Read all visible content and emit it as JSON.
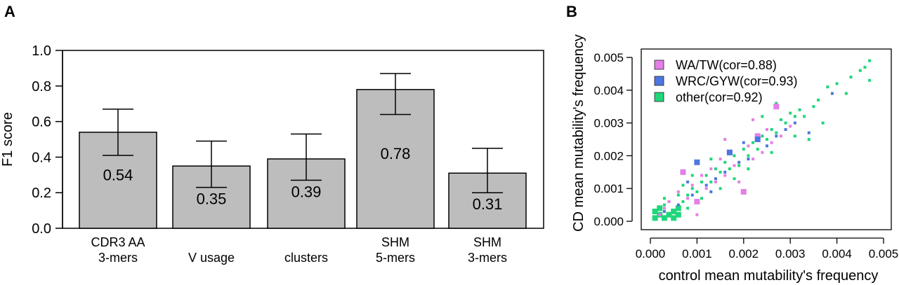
{
  "panels": {
    "a_label": "A",
    "b_label": "B"
  },
  "chart_data": [
    {
      "type": "bar",
      "panel": "A",
      "categories": [
        [
          "CDR3 AA",
          "3-mers"
        ],
        [
          "V usage"
        ],
        [
          "clusters"
        ],
        [
          "SHM",
          "5-mers"
        ],
        [
          "SHM",
          "3-mers"
        ]
      ],
      "values": [
        0.54,
        0.35,
        0.39,
        0.78,
        0.31
      ],
      "value_labels": [
        "0.54",
        "0.35",
        "0.39",
        "0.78",
        "0.31"
      ],
      "error_low": [
        0.41,
        0.23,
        0.27,
        0.64,
        0.2
      ],
      "error_high": [
        0.67,
        0.49,
        0.53,
        0.87,
        0.45
      ],
      "ylabel": "F1 score",
      "ylim": [
        0,
        1.0
      ],
      "yticks": [
        "0.0",
        "0.2",
        "0.4",
        "0.6",
        "0.8",
        "1.0"
      ],
      "bar_color": "#bdbdbd",
      "grid": false
    },
    {
      "type": "scatter",
      "panel": "B",
      "xlabel": "control mean mutability's frequency",
      "ylabel": "CD mean mutability's frequency",
      "xlim": [
        0,
        0.005
      ],
      "ylim": [
        0,
        0.005
      ],
      "xticks": [
        "0.000",
        "0.001",
        "0.002",
        "0.003",
        "0.004",
        "0.005"
      ],
      "yticks": [
        "0.000",
        "0.001",
        "0.002",
        "0.003",
        "0.004",
        "0.005"
      ],
      "legend_position": "top-left",
      "series": [
        {
          "name": "WA/TW(cor=0.88)",
          "color": "#e37fe6",
          "points": [
            [
              0.0002,
              0.0002
            ],
            [
              0.0004,
              0.0006
            ],
            [
              0.0006,
              0.0009
            ],
            [
              0.0008,
              0.0007
            ],
            [
              0.0009,
              0.0011
            ],
            [
              0.001,
              0.0006
            ],
            [
              0.0011,
              0.0014
            ],
            [
              0.0012,
              0.001
            ],
            [
              0.0013,
              0.0016
            ],
            [
              0.0014,
              0.0012
            ],
            [
              0.0015,
              0.0019
            ],
            [
              0.0016,
              0.0014
            ],
            [
              0.0017,
              0.0021
            ],
            [
              0.0018,
              0.0017
            ],
            [
              0.002,
              0.0009
            ],
            [
              0.0021,
              0.0023
            ],
            [
              0.0022,
              0.0019
            ],
            [
              0.0023,
              0.0026
            ],
            [
              0.0024,
              0.0021
            ],
            [
              0.0025,
              0.0028
            ],
            [
              0.0026,
              0.0024
            ],
            [
              0.0027,
              0.0035
            ],
            [
              0.0028,
              0.0026
            ],
            [
              0.003,
              0.0029
            ],
            [
              0.0007,
              0.0015
            ],
            [
              0.001,
              0.0002
            ],
            [
              0.0019,
              0.0012
            ],
            [
              0.0022,
              0.0031
            ],
            [
              0.0016,
              0.0025
            ],
            [
              0.0003,
              0.0004
            ]
          ],
          "sizes": [
            1,
            1,
            1,
            1,
            1,
            2,
            1,
            1,
            1,
            1,
            1,
            1,
            2,
            1,
            2,
            1,
            1,
            2,
            1,
            1,
            1,
            2,
            1,
            1,
            2,
            1,
            1,
            1,
            1,
            1
          ]
        },
        {
          "name": "WRC/GYW(cor=0.93)",
          "color": "#4d76e0",
          "points": [
            [
              0.0003,
              0.0003
            ],
            [
              0.0006,
              0.0005
            ],
            [
              0.0009,
              0.0008
            ],
            [
              0.001,
              0.0018
            ],
            [
              0.0012,
              0.0011
            ],
            [
              0.0014,
              0.0013
            ],
            [
              0.0016,
              0.0015
            ],
            [
              0.0017,
              0.0021
            ],
            [
              0.0019,
              0.0018
            ],
            [
              0.0021,
              0.0019
            ],
            [
              0.0023,
              0.0025
            ],
            [
              0.0025,
              0.0023
            ],
            [
              0.0027,
              0.0026
            ],
            [
              0.0029,
              0.0028
            ],
            [
              0.0031,
              0.003
            ],
            [
              0.0034,
              0.0027
            ],
            [
              0.0039,
              0.0039
            ],
            [
              0.0013,
              0.0009
            ],
            [
              0.0008,
              0.0012
            ],
            [
              0.002,
              0.0024
            ]
          ],
          "sizes": [
            1,
            1,
            1,
            2,
            1,
            1,
            1,
            2,
            1,
            1,
            2,
            1,
            1,
            1,
            1,
            1,
            1,
            1,
            1,
            1
          ]
        },
        {
          "name": "other(cor=0.92)",
          "color": "#1fd67a",
          "points": [
            [
              0.0001,
              0.0001
            ],
            [
              0.0002,
              0.0002
            ],
            [
              0.0003,
              0.0001
            ],
            [
              0.0004,
              0.0002
            ],
            [
              0.0005,
              0.0003
            ],
            [
              0.0003,
              0.0005
            ],
            [
              0.0006,
              0.0004
            ],
            [
              0.0004,
              0.0006
            ],
            [
              0.0007,
              0.0006
            ],
            [
              0.0006,
              0.0008
            ],
            [
              0.0008,
              0.0008
            ],
            [
              0.0009,
              0.001
            ],
            [
              0.0007,
              0.0011
            ],
            [
              0.001,
              0.0009
            ],
            [
              0.0011,
              0.0012
            ],
            [
              0.0012,
              0.0014
            ],
            [
              0.0013,
              0.0012
            ],
            [
              0.0014,
              0.0016
            ],
            [
              0.0015,
              0.0015
            ],
            [
              0.0016,
              0.0018
            ],
            [
              0.0017,
              0.0016
            ],
            [
              0.0018,
              0.002
            ],
            [
              0.0019,
              0.0017
            ],
            [
              0.002,
              0.0022
            ],
            [
              0.0021,
              0.002
            ],
            [
              0.0022,
              0.0024
            ],
            [
              0.0023,
              0.0022
            ],
            [
              0.0024,
              0.0026
            ],
            [
              0.0025,
              0.0025
            ],
            [
              0.0026,
              0.0028
            ],
            [
              0.0027,
              0.0027
            ],
            [
              0.0028,
              0.0031
            ],
            [
              0.0029,
              0.003
            ],
            [
              0.003,
              0.0033
            ],
            [
              0.0031,
              0.0032
            ],
            [
              0.0032,
              0.0034
            ],
            [
              0.0033,
              0.0032
            ],
            [
              0.0035,
              0.0035
            ],
            [
              0.0036,
              0.0037
            ],
            [
              0.0037,
              0.003
            ],
            [
              0.0038,
              0.0041
            ],
            [
              0.004,
              0.0042
            ],
            [
              0.0043,
              0.0044
            ],
            [
              0.0045,
              0.0046
            ],
            [
              0.0046,
              0.0047
            ],
            [
              0.0047,
              0.0049
            ],
            [
              0.0047,
              0.0043
            ],
            [
              0.0042,
              0.0039
            ],
            [
              0.0034,
              0.0025
            ],
            [
              0.0027,
              0.0036
            ],
            [
              0.0024,
              0.0032
            ],
            [
              0.0002,
              0.0004
            ],
            [
              0.0005,
              0.0001
            ],
            [
              0.0001,
              0.0003
            ],
            [
              0.0008,
              0.0004
            ],
            [
              0.0011,
              0.0007
            ],
            [
              0.0009,
              0.0014
            ],
            [
              0.0015,
              0.001
            ],
            [
              0.0018,
              0.0013
            ],
            [
              0.0021,
              0.0016
            ],
            [
              0.0026,
              0.0021
            ],
            [
              0.0031,
              0.0026
            ],
            [
              0.0013,
              0.0019
            ],
            [
              0.0006,
              0.0002
            ],
            [
              0.0003,
              0.0007
            ]
          ],
          "sizes": [
            2,
            2,
            2,
            2,
            2,
            1,
            2,
            1,
            1,
            1,
            1,
            1,
            1,
            1,
            1,
            1,
            1,
            1,
            1,
            1,
            1,
            1,
            1,
            1,
            1,
            1,
            1,
            1,
            1,
            1,
            1,
            1,
            1,
            1,
            1,
            1,
            1,
            1,
            1,
            1,
            1,
            1,
            1,
            1,
            1,
            1,
            1,
            1,
            1,
            1,
            1,
            2,
            2,
            2,
            1,
            1,
            1,
            1,
            1,
            1,
            1,
            1,
            1,
            2,
            1
          ]
        }
      ]
    }
  ]
}
